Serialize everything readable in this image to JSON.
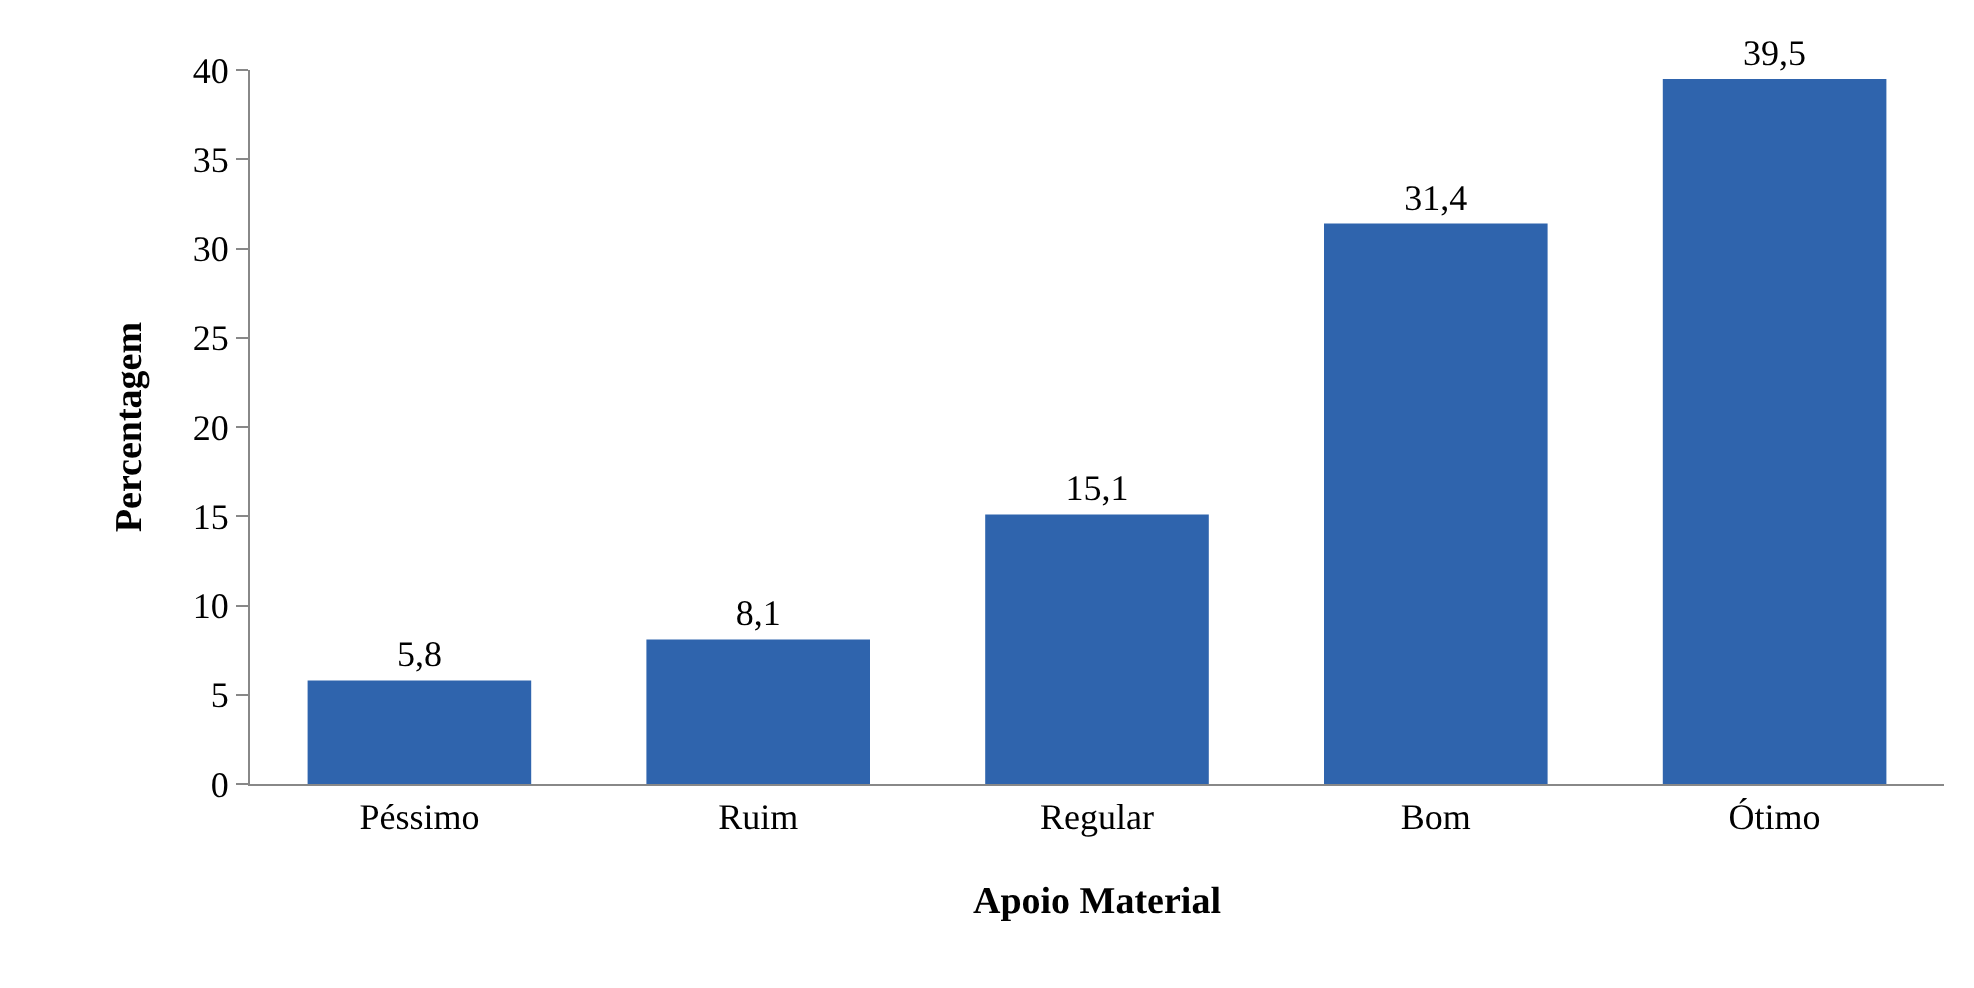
{
  "chart_data": {
    "type": "bar",
    "xlabel": "Apoio Material",
    "ylabel": "Percentagem",
    "categories": [
      "Péssimo",
      "Ruim",
      "Regular",
      "Bom",
      "Ótimo"
    ],
    "values": [
      5.8,
      8.1,
      15.1,
      31.4,
      39.5
    ],
    "value_labels": [
      "5,8",
      "8,1",
      "15,1",
      "31,4",
      "39,5"
    ],
    "color": "#2f64ad",
    "ylim": [
      0,
      40
    ],
    "yticks": [
      0,
      5,
      10,
      15,
      20,
      25,
      30,
      35,
      40
    ]
  }
}
